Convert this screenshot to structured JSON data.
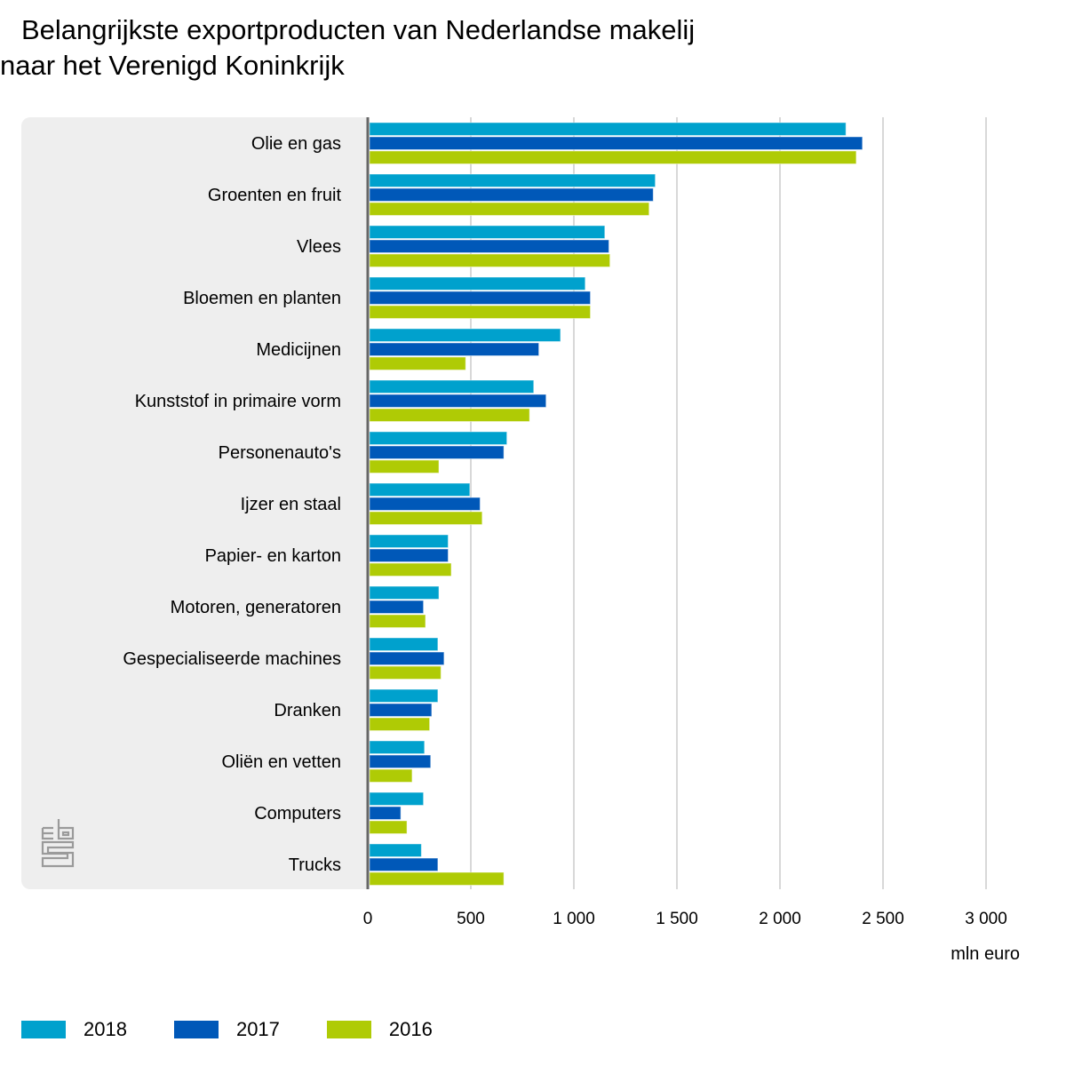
{
  "title": {
    "line1": "Belangrijkste exportproducten van Nederlandse makelij",
    "line2": "naar het Verenigd Koninkrijk"
  },
  "logo": "cbs-logo-icon",
  "chart_data": {
    "type": "bar",
    "orientation": "horizontal",
    "title": "Belangrijkste exportproducten van Nederlandse makelij naar het Verenigd Koninkrijk",
    "xlabel": "mln euro",
    "ylabel": "",
    "xlim": [
      0,
      3000
    ],
    "xticks": [
      0,
      500,
      1000,
      1500,
      2000,
      2500,
      3000
    ],
    "xtick_labels": [
      "0",
      "500",
      "1 000",
      "1 500",
      "2 000",
      "2 500",
      "3 000"
    ],
    "grid": true,
    "legend_position": "bottom-left",
    "categories": [
      "Olie en gas",
      "Groenten en fruit",
      "Vlees",
      "Bloemen en planten",
      "Medicijnen",
      "Kunststof in primaire vorm",
      "Personenauto's",
      "Ijzer en staal",
      "Papier- en karton",
      "Motoren, generatoren",
      "Gespecialiseerde machines",
      "Dranken",
      "Oliën en vetten",
      "Computers",
      "Trucks"
    ],
    "series": [
      {
        "name": "2018",
        "color": "#00a1cd",
        "values": [
          2320,
          1395,
          1150,
          1055,
          935,
          805,
          675,
          495,
          390,
          345,
          340,
          340,
          275,
          270,
          260
        ]
      },
      {
        "name": "2017",
        "color": "#0058b8",
        "values": [
          2400,
          1385,
          1170,
          1080,
          830,
          865,
          660,
          545,
          390,
          270,
          370,
          310,
          305,
          160,
          340
        ]
      },
      {
        "name": "2016",
        "color": "#afcb05",
        "values": [
          2370,
          1365,
          1175,
          1080,
          475,
          785,
          345,
          555,
          405,
          280,
          355,
          300,
          215,
          190,
          660
        ]
      }
    ]
  },
  "legend": [
    {
      "label": "2018",
      "color": "#00a1cd"
    },
    {
      "label": "2017",
      "color": "#0058b8"
    },
    {
      "label": "2016",
      "color": "#afcb05"
    }
  ],
  "axis_unit": "mln euro"
}
